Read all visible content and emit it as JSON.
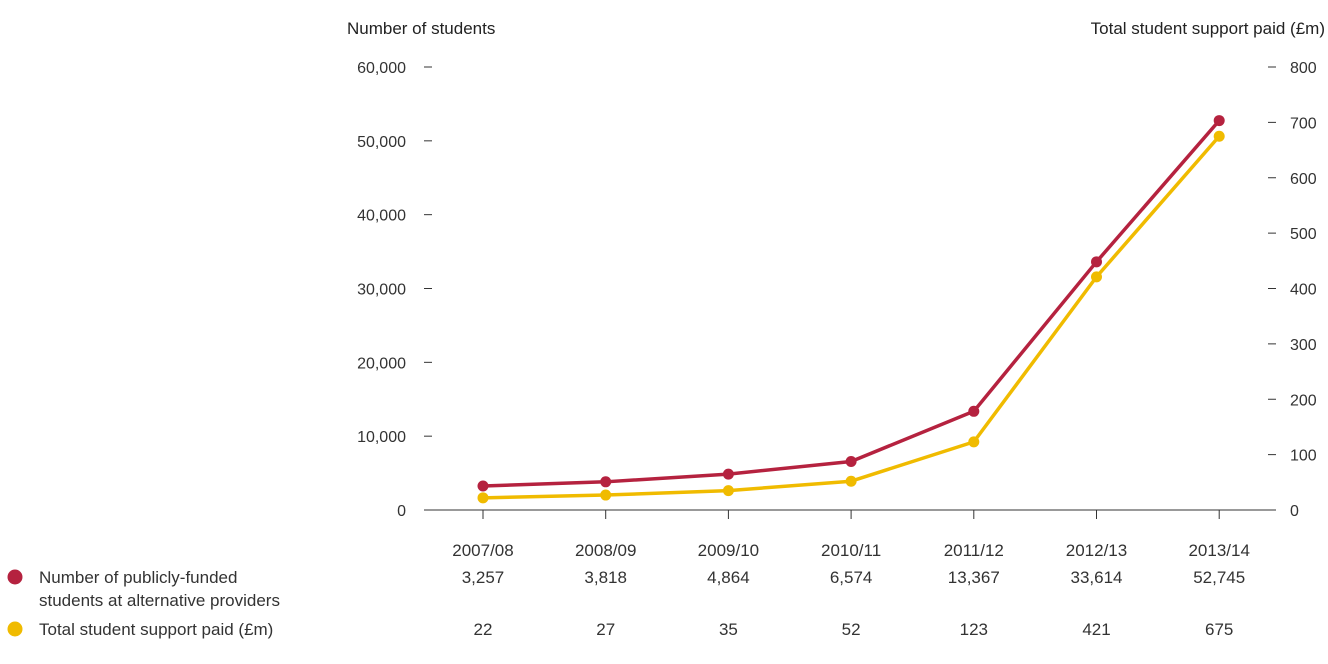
{
  "chart_data": {
    "type": "line",
    "categories": [
      "2007/08",
      "2008/09",
      "2009/10",
      "2010/11",
      "2011/12",
      "2012/13",
      "2013/14"
    ],
    "left_axis": {
      "label": "Number of students",
      "ticks": [
        "0",
        "10,000",
        "20,000",
        "30,000",
        "40,000",
        "50,000",
        "60,000"
      ],
      "range": [
        0,
        60000
      ]
    },
    "right_axis": {
      "label": "Total student support paid (£m)",
      "ticks": [
        "0",
        "100",
        "200",
        "300",
        "400",
        "500",
        "600",
        "700",
        "800"
      ],
      "range": [
        0,
        800
      ]
    },
    "series": [
      {
        "name": "Number of publicly-funded students at alternative providers",
        "legend_lines": [
          "Number of publicly-funded",
          "students at alternative providers"
        ],
        "axis": "left",
        "color": "#b5223f",
        "values": [
          3257,
          3818,
          4864,
          6574,
          13367,
          33614,
          52745
        ],
        "labels": [
          "3,257",
          "3,818",
          "4,864",
          "6,574",
          "13,367",
          "33,614",
          "52,745"
        ]
      },
      {
        "name": "Total student support paid (£m)",
        "legend_lines": [
          "Total student support paid (£m)"
        ],
        "axis": "right",
        "color": "#f0bb00",
        "values": [
          22,
          27,
          35,
          52,
          123,
          421,
          675
        ],
        "labels": [
          "22",
          "27",
          "35",
          "52",
          "123",
          "421",
          "675"
        ]
      }
    ],
    "grid": false,
    "legend_placement": "bottom-left"
  }
}
